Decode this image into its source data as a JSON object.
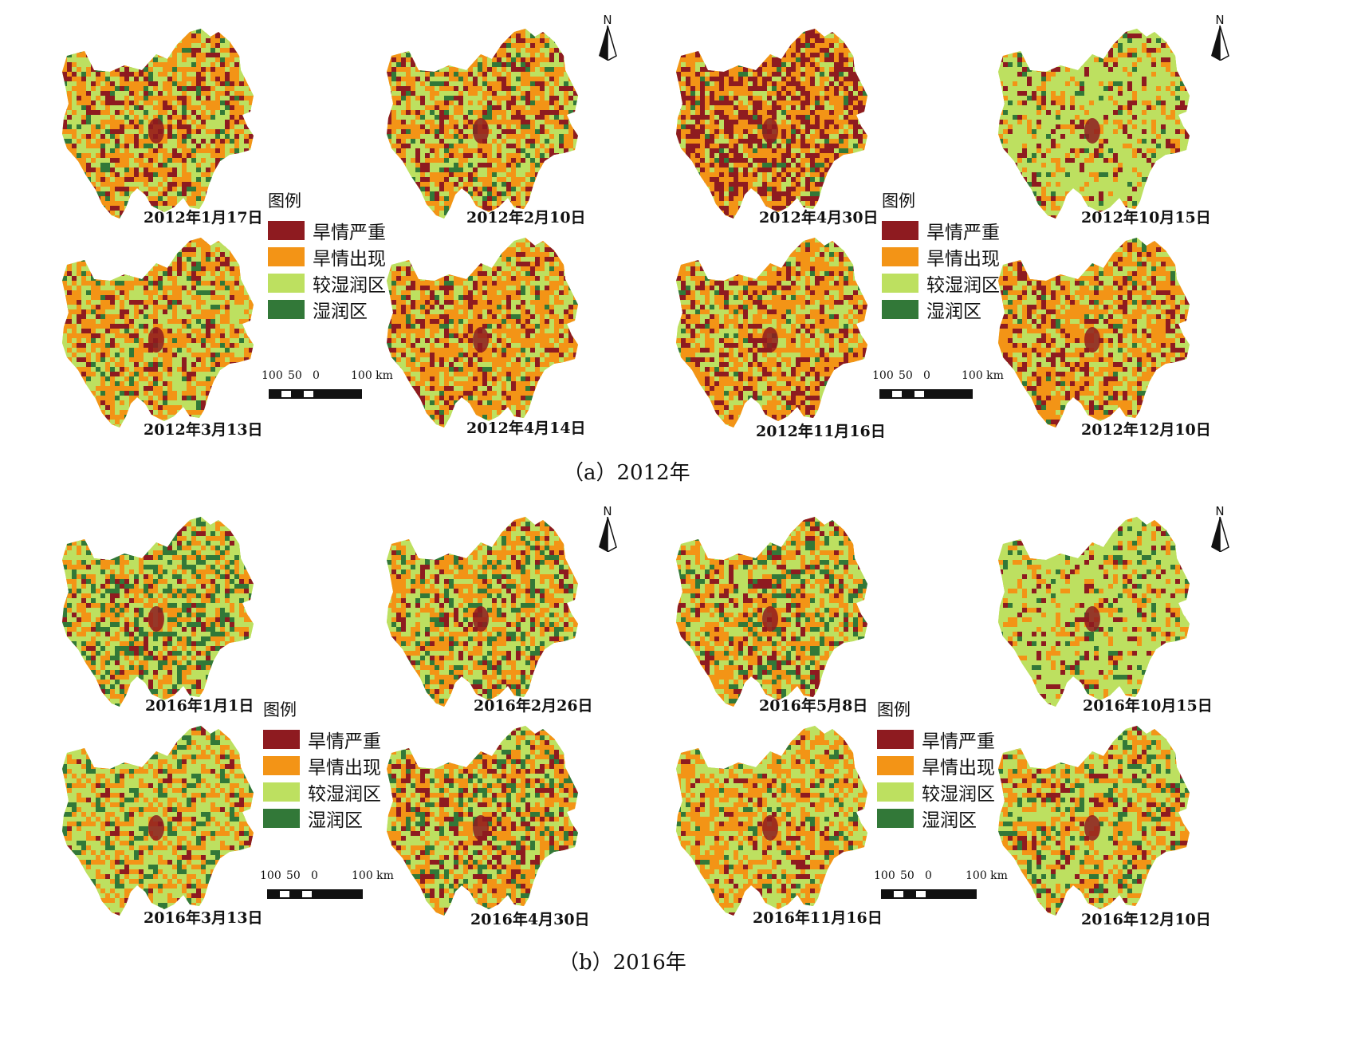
{
  "colors": {
    "severe": "#8e1b20",
    "appear": "#f39416",
    "moist": "#bde060",
    "wet": "#327838"
  },
  "legend": {
    "title": "图例",
    "items": [
      {
        "label": "旱情严重",
        "color": "#8e1b20"
      },
      {
        "label": "旱情出现",
        "color": "#f39416"
      },
      {
        "label": "较湿润区",
        "color": "#bde060"
      },
      {
        "label": "湿润区",
        "color": "#327838"
      }
    ]
  },
  "scalebar": {
    "l1": "100",
    "l2": "50",
    "l3": "0",
    "l4": "100 km"
  },
  "north": "N",
  "panels": [
    {
      "caption": "（a）2012年",
      "maps": [
        {
          "date": "2012年1月17日",
          "mix": [
            0.16,
            0.42,
            0.34,
            0.08
          ]
        },
        {
          "date": "2012年2月10日",
          "mix": [
            0.18,
            0.4,
            0.34,
            0.08
          ]
        },
        {
          "date": "2012年3月13日",
          "mix": [
            0.12,
            0.44,
            0.37,
            0.07
          ]
        },
        {
          "date": "2012年4月14日",
          "mix": [
            0.18,
            0.47,
            0.3,
            0.05
          ]
        },
        {
          "date": "2012年4月30日",
          "mix": [
            0.38,
            0.4,
            0.18,
            0.04
          ]
        },
        {
          "date": "2012年10月15日",
          "mix": [
            0.1,
            0.18,
            0.66,
            0.06
          ]
        },
        {
          "date": "2012年11月16日",
          "mix": [
            0.2,
            0.48,
            0.28,
            0.04
          ]
        },
        {
          "date": "2012年12月10日",
          "mix": [
            0.18,
            0.48,
            0.3,
            0.04
          ]
        }
      ]
    },
    {
      "caption": "（b）2016年",
      "maps": [
        {
          "date": "2016年1月1日",
          "mix": [
            0.08,
            0.3,
            0.4,
            0.22
          ]
        },
        {
          "date": "2016年2月26日",
          "mix": [
            0.1,
            0.38,
            0.38,
            0.14
          ]
        },
        {
          "date": "2016年3月13日",
          "mix": [
            0.1,
            0.4,
            0.38,
            0.12
          ]
        },
        {
          "date": "2016年4月30日",
          "mix": [
            0.18,
            0.36,
            0.32,
            0.14
          ]
        },
        {
          "date": "2016年5月8日",
          "mix": [
            0.14,
            0.34,
            0.36,
            0.16
          ]
        },
        {
          "date": "2016年10月15日",
          "mix": [
            0.08,
            0.16,
            0.7,
            0.06
          ]
        },
        {
          "date": "2016年11月16日",
          "mix": [
            0.1,
            0.44,
            0.4,
            0.06
          ]
        },
        {
          "date": "2016年12月10日",
          "mix": [
            0.1,
            0.36,
            0.44,
            0.1
          ]
        }
      ]
    }
  ]
}
